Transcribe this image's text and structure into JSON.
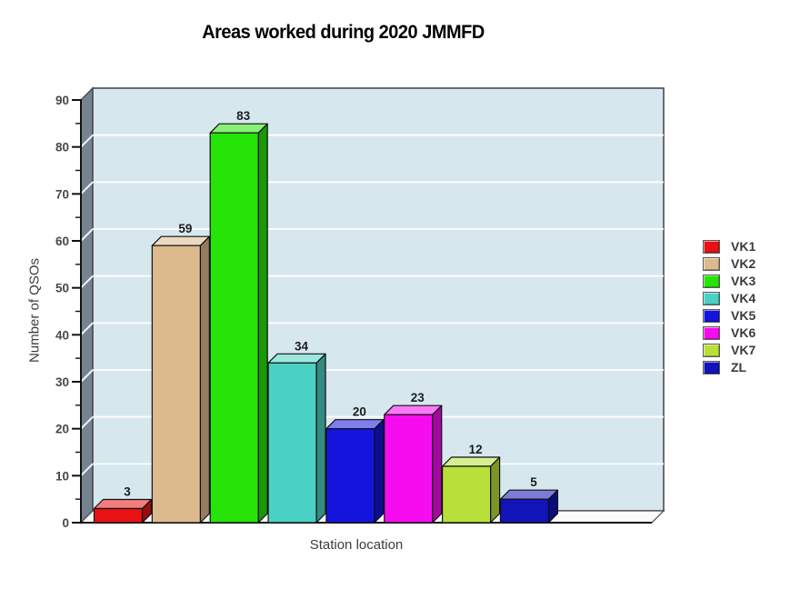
{
  "chart_data": {
    "type": "bar",
    "style": "3d-column",
    "title": "Areas worked during 2020 JMMFD",
    "xlabel": "Station location",
    "ylabel": "Number of QSOs",
    "ylim": [
      0,
      90
    ],
    "ytick_step": 10,
    "ytick_minor_step": 5,
    "yticks": [
      0,
      10,
      20,
      30,
      40,
      50,
      60,
      70,
      80,
      90
    ],
    "grid": true,
    "value_labels_shown": true,
    "legend_position": "right",
    "categories": [
      "VK1",
      "VK2",
      "VK3",
      "VK4",
      "VK5",
      "VK6",
      "VK7",
      "ZL"
    ],
    "values": [
      3,
      59,
      83,
      34,
      20,
      23,
      12,
      5
    ],
    "colors": [
      "#e81212",
      "#dcba8e",
      "#26e407",
      "#4ad1c3",
      "#1414dd",
      "#f70cf0",
      "#b8e038",
      "#1213b8"
    ],
    "plot_bg_color": "#d7e7ee",
    "left_wall_color": "#74838e",
    "floor_color": "#fbfbfb",
    "gridline_color": "#ffffff"
  }
}
